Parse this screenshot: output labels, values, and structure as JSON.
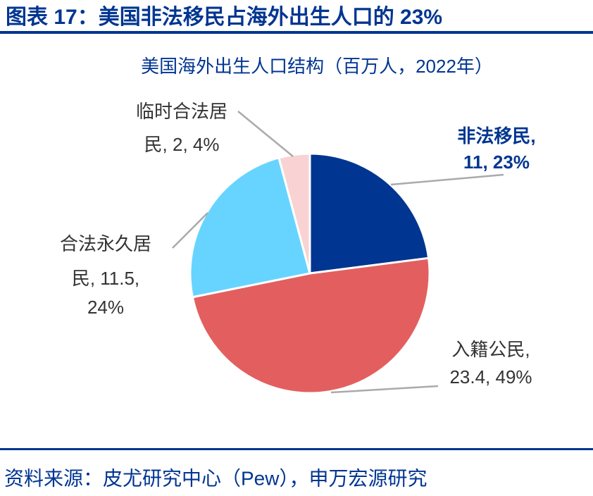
{
  "header": {
    "title": "图表 17：美国非法移民占海外出生人口的 23%"
  },
  "chart_data": {
    "type": "pie",
    "subtitle": "美国海外出生人口结构（百万人，2022年）",
    "categories": [
      "非法移民",
      "入籍公民",
      "合法永久居民",
      "临时合法居民"
    ],
    "values": [
      11,
      23.4,
      11.5,
      2
    ],
    "value_labels": [
      [
        "非法移民,",
        "11, 23%"
      ],
      [
        "入籍公民,",
        "23.4, 49%"
      ],
      [
        "合法永久居",
        "民, 11.5,",
        "24%"
      ],
      [
        "临时合法居",
        "民, 2, 4%"
      ]
    ],
    "colors": [
      "#003591",
      "#E35F5F",
      "#66D4FF",
      "#F9D3D3"
    ]
  },
  "footer": {
    "source": "资料来源：皮尤研究中心（Pew），申万宏源研究"
  }
}
